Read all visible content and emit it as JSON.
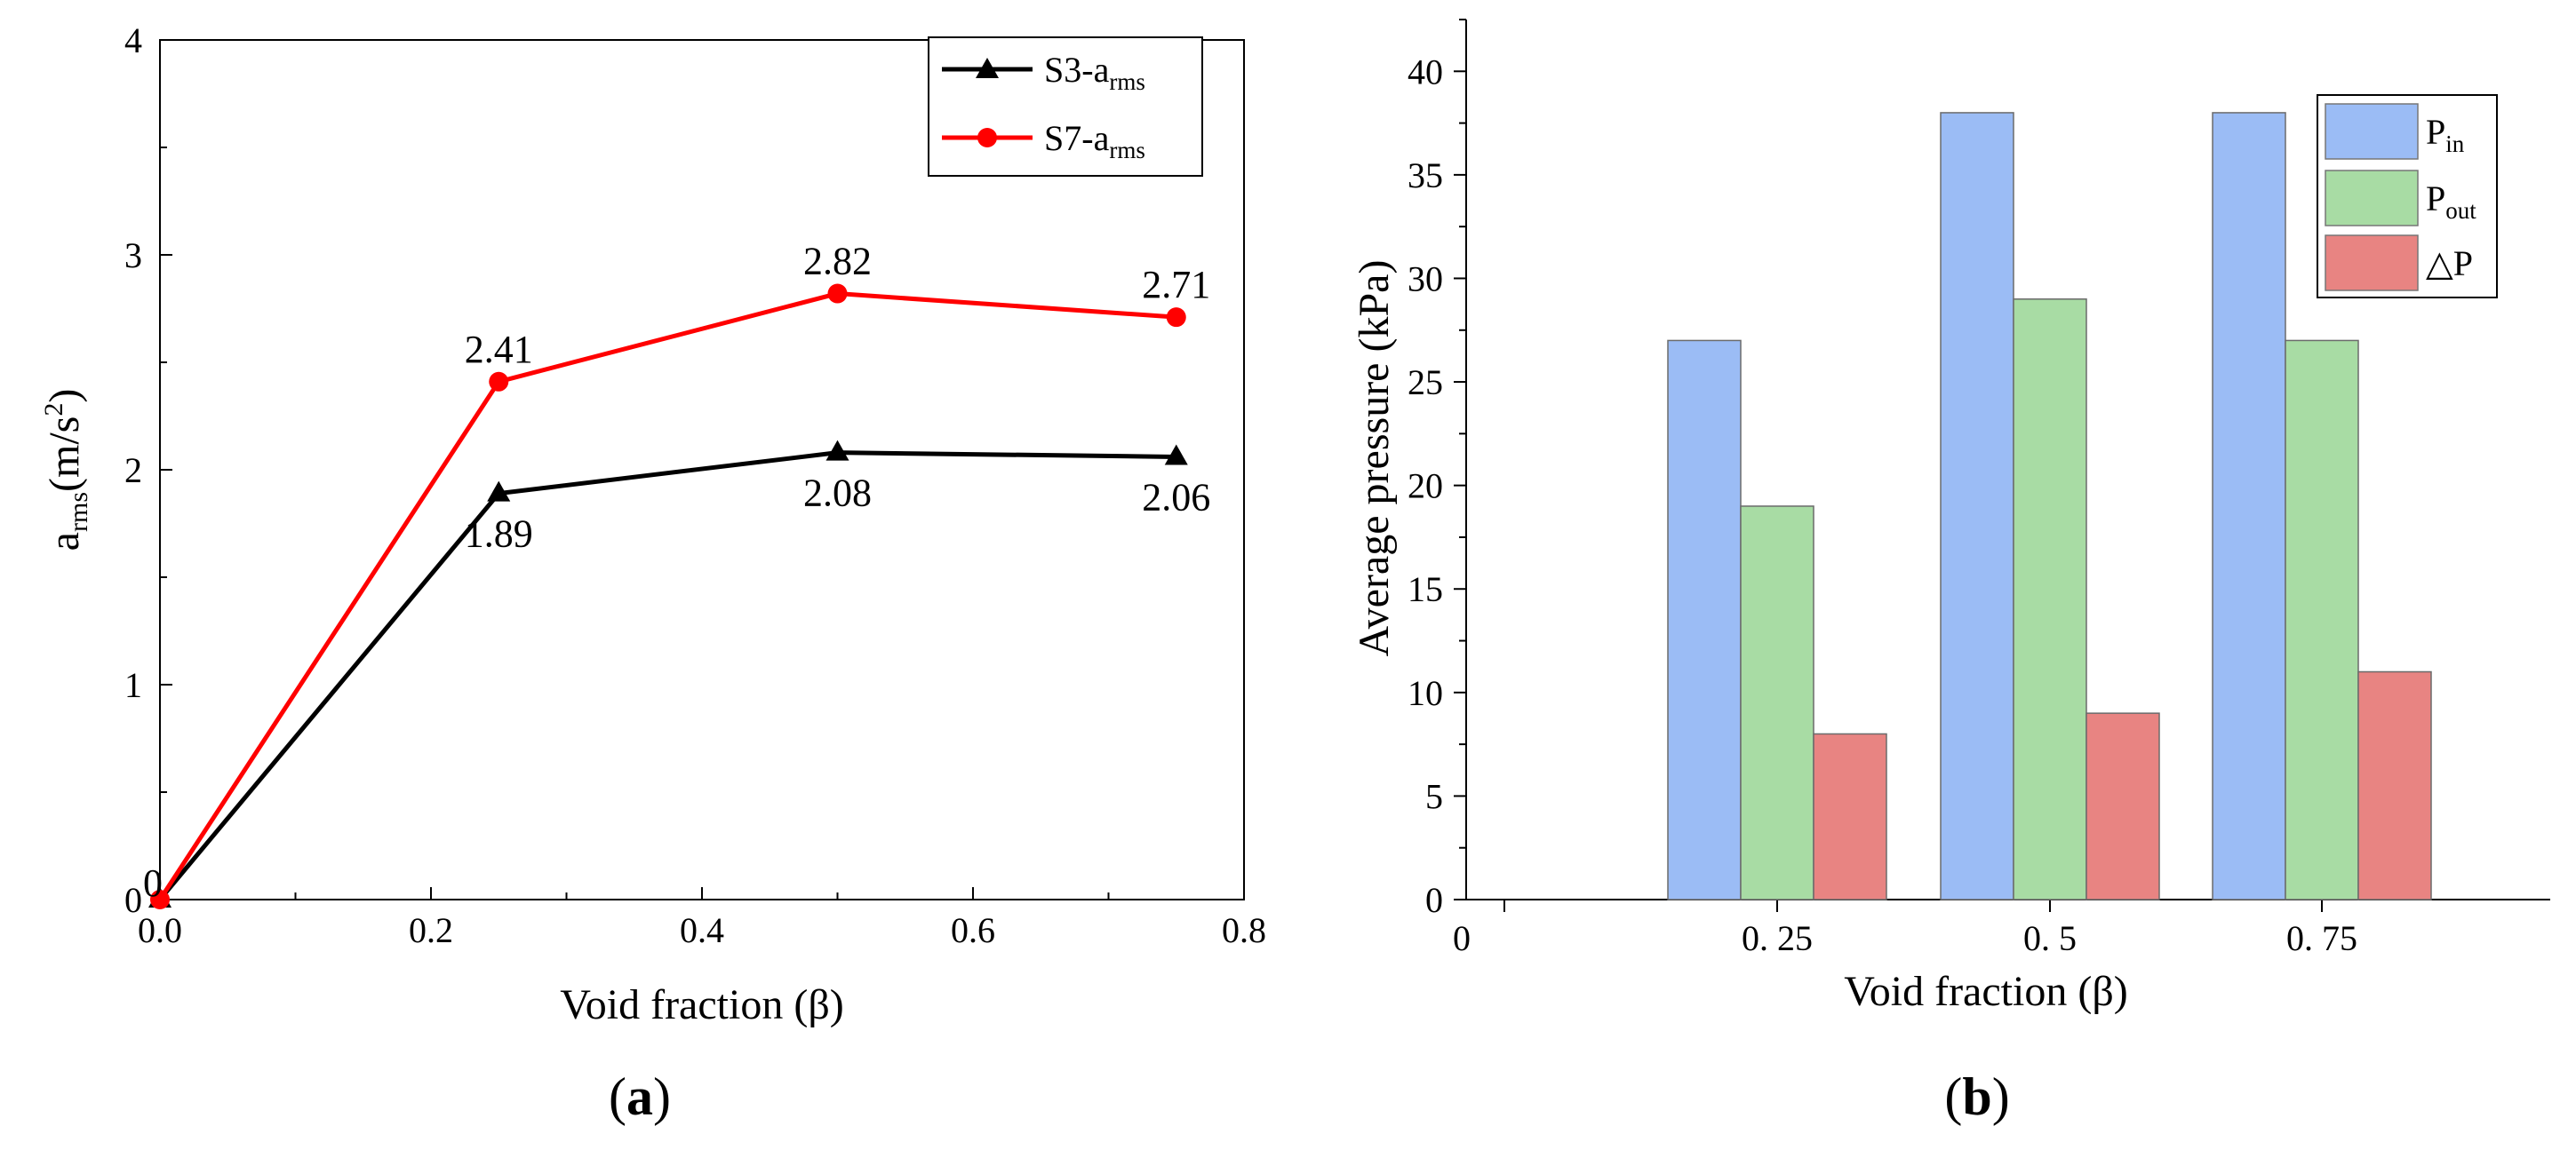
{
  "chart_data": [
    {
      "panel": "a",
      "type": "line",
      "x": [
        0.0,
        0.25,
        0.5,
        0.75
      ],
      "series": [
        {
          "name": "S3-a",
          "name_sub": "rms",
          "color": "#000000",
          "marker": "triangle",
          "values": [
            0,
            1.89,
            2.08,
            2.06
          ],
          "labels": [
            "0",
            "1.89",
            "2.08",
            "2.06"
          ]
        },
        {
          "name": "S7-a",
          "name_sub": "rms",
          "color": "#ff0000",
          "marker": "circle",
          "values": [
            0,
            2.41,
            2.82,
            2.71
          ],
          "labels": [
            "0",
            "2.41",
            "2.82",
            "2.71"
          ]
        }
      ],
      "xlabel": "Void fraction (β)",
      "ylabel_main": "a",
      "ylabel_sub": "rms",
      "ylabel_rest": "(m/s",
      "ylabel_sup": "2",
      "ylabel_end": ")",
      "xlim": [
        0,
        0.8
      ],
      "ylim": [
        0,
        4
      ],
      "xticks": [
        "0.0",
        "0.2",
        "0.4",
        "0.6",
        "0.8"
      ],
      "yticks": [
        "0",
        "1",
        "2",
        "3",
        "4"
      ],
      "legend": "top-right",
      "caption": "a"
    },
    {
      "panel": "b",
      "type": "bar",
      "categories": [
        "0. 25",
        "0. 5",
        "0. 75"
      ],
      "series": [
        {
          "name": "P",
          "name_sub": "in",
          "color": "#9bbcf5",
          "values": [
            27,
            38,
            38
          ]
        },
        {
          "name": "P",
          "name_sub": "out",
          "color": "#a8dca4",
          "values": [
            19,
            29,
            27
          ]
        },
        {
          "name": "△P",
          "name_sub": "",
          "color": "#e88482",
          "values": [
            8,
            9,
            11
          ]
        }
      ],
      "x_origin_label": "0",
      "xlabel": "Void fraction (β)",
      "ylabel": "Average pressure (kPa)",
      "ylim": [
        0,
        42.5
      ],
      "yticks": [
        "0",
        "5",
        "10",
        "15",
        "20",
        "25",
        "30",
        "35",
        "40"
      ],
      "legend": "top-right",
      "caption": "b"
    }
  ]
}
